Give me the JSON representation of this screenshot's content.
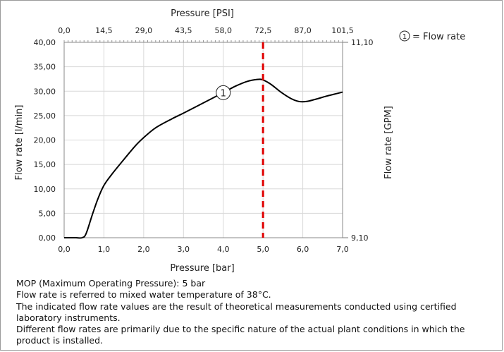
{
  "chart_data": {
    "type": "line",
    "top_axis_title": "Pressure [PSI]",
    "top_ticks": [
      "0,0",
      "14,5",
      "29,0",
      "43,5",
      "58,0",
      "72,5",
      "87,0",
      "101,5"
    ],
    "xlabel": "Pressure [bar]",
    "x_ticks": [
      "0,0",
      "1,0",
      "2,0",
      "3,0",
      "4,0",
      "5,0",
      "6,0",
      "7,0"
    ],
    "xlim": [
      0,
      7
    ],
    "ylabel": "Flow rate [l/min]",
    "y_ticks": [
      "0,00",
      "5,00",
      "10,00",
      "15,00",
      "20,00",
      "25,00",
      "30,00",
      "35,00",
      "40,00"
    ],
    "ylim": [
      0,
      40
    ],
    "y2label": "Flow rate [GPM]",
    "y2_ticks": [
      "9,10",
      "11,10"
    ],
    "legend_text": "= Flow rate",
    "series": [
      {
        "marker_label": "1",
        "color": "#000000",
        "x": [
          0.0,
          0.15,
          0.3,
          0.45,
          0.55,
          0.7,
          0.85,
          1.0,
          1.2,
          1.5,
          1.8,
          2.0,
          2.3,
          2.7,
          3.0,
          3.5,
          4.0,
          4.3,
          4.6,
          4.85,
          5.0,
          5.2,
          5.45,
          5.7,
          5.9,
          6.1,
          6.3,
          6.6,
          6.85,
          7.0
        ],
        "y": [
          0.0,
          0.0,
          0.0,
          0.0,
          0.8,
          4.5,
          8.0,
          10.7,
          13.0,
          16.0,
          18.9,
          20.5,
          22.5,
          24.3,
          25.5,
          27.6,
          29.7,
          31.0,
          32.0,
          32.4,
          32.3,
          31.4,
          29.8,
          28.5,
          27.9,
          27.9,
          28.3,
          29.0,
          29.5,
          29.8
        ]
      }
    ],
    "reference_line": {
      "x": 5.0,
      "color": "#e00000"
    },
    "grid": true,
    "legend_position": "top-right"
  },
  "notes": [
    "MOP (Maximum Operating Pressure): 5 bar",
    "Flow rate is referred to mixed water temperature of 38°C.",
    "The indicated flow rate values are the result of theoretical measurements conducted using certified laboratory instruments.",
    "Different flow rates are primarily due to the specific nature of the actual plant conditions in which the product is installed."
  ]
}
